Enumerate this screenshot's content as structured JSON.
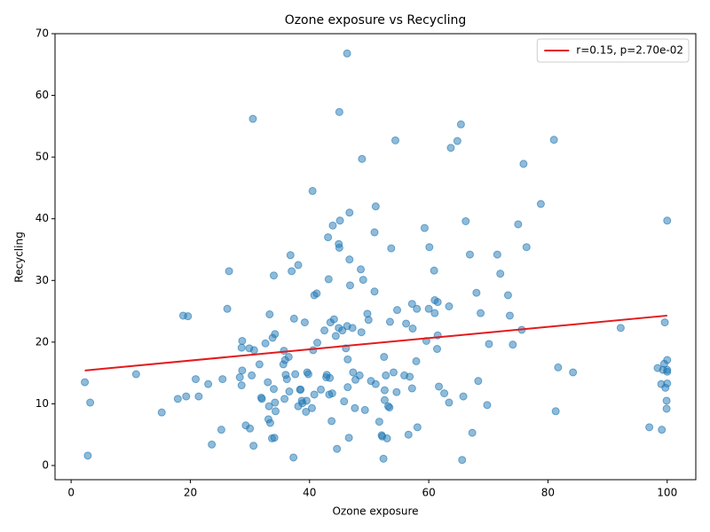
{
  "chart_data": {
    "type": "scatter",
    "title": "Ozone exposure vs Recycling",
    "x_label": "Ozone exposure",
    "y_label": "Recycling",
    "xlim": [
      -2.7,
      104.8
    ],
    "ylim": [
      -2.3,
      70
    ],
    "xticks": [
      0,
      20,
      40,
      60,
      80,
      100
    ],
    "yticks": [
      0,
      10,
      20,
      30,
      40,
      50,
      60,
      70
    ],
    "legend": "upper right",
    "points": {
      "color": "#1f77b4",
      "x": [
        2.3,
        2.8,
        3.2,
        10.9,
        15.2,
        17.9,
        18.8,
        19.3,
        19.6,
        20.9,
        21.4,
        23,
        23.6,
        25.2,
        25.4,
        26.2,
        26.5,
        28.3,
        28.6,
        28.6,
        28.7,
        28.7,
        29.3,
        29.9,
        30,
        30.3,
        30.5,
        30.6,
        30.7,
        31.6,
        31.9,
        32,
        32.6,
        33,
        33.1,
        33.2,
        33.3,
        33.4,
        33.7,
        33.8,
        34,
        34,
        34.1,
        34.2,
        34.2,
        34.3,
        35.6,
        35.7,
        35.8,
        35.9,
        36,
        36.2,
        36.5,
        36.6,
        36.8,
        37,
        37.3,
        37.4,
        37.6,
        38.1,
        38.1,
        38.4,
        38.5,
        38.7,
        38.8,
        39.2,
        39.4,
        39.5,
        39.6,
        39.8,
        40.4,
        40.5,
        40.6,
        40.8,
        40.8,
        41.2,
        41.3,
        41.9,
        42.5,
        42.8,
        42.9,
        43.1,
        43.2,
        43.3,
        43.4,
        43.5,
        43.7,
        43.8,
        43.9,
        44.1,
        44.4,
        44.6,
        44.9,
        44.9,
        45,
        45,
        45.1,
        45.5,
        45.8,
        46.1,
        46.3,
        46.3,
        46.4,
        46.4,
        46.6,
        46.7,
        46.7,
        46.8,
        47.2,
        47.3,
        47.6,
        47.7,
        48.4,
        48.6,
        48.7,
        48.8,
        49,
        49.3,
        49.7,
        49.9,
        50.3,
        50.9,
        50.9,
        51.1,
        51.1,
        51.7,
        52.1,
        52.2,
        52.4,
        52.5,
        52.6,
        52.6,
        52.8,
        53,
        53.2,
        53.4,
        53.5,
        53.7,
        54.1,
        54.4,
        54.6,
        54.7,
        55.9,
        56.2,
        56.6,
        56.8,
        57.2,
        57.2,
        57.3,
        57.9,
        58,
        58.1,
        59.3,
        59.6,
        60,
        60.1,
        60.9,
        61,
        61,
        61.4,
        61.5,
        61.5,
        61.7,
        62.6,
        63.4,
        63.4,
        63.7,
        64.8,
        65.4,
        65.6,
        65.8,
        66.2,
        66.9,
        67.3,
        68,
        68.3,
        68.7,
        69.8,
        70.1,
        71.5,
        72,
        73.3,
        73.6,
        74.1,
        75,
        75.6,
        75.9,
        76.4,
        78.8,
        81,
        81.3,
        81.7,
        84.2,
        92.2,
        97,
        98.4,
        99,
        99.1,
        99.3,
        99.5,
        99.6,
        99.7,
        99.9,
        99.9,
        100,
        100,
        100,
        100,
        100
      ],
      "y": [
        13.5,
        1.6,
        10.2,
        14.8,
        8.6,
        10.8,
        24.3,
        11.2,
        24.2,
        14,
        11.2,
        13.2,
        3.4,
        5.8,
        14,
        25.4,
        31.5,
        14.3,
        19.1,
        13,
        15.4,
        20.2,
        6.5,
        19,
        6,
        14.6,
        56.2,
        3.2,
        18.7,
        16.4,
        11,
        10.8,
        19.8,
        13.5,
        7.5,
        9.6,
        24.5,
        6.9,
        4.4,
        20.7,
        12.4,
        30.8,
        4.5,
        10.2,
        21.3,
        8.8,
        16.4,
        18.6,
        10.8,
        17.1,
        14.7,
        14,
        17.6,
        12,
        34.1,
        31.5,
        1.3,
        23.8,
        14.8,
        9.6,
        32.5,
        12.3,
        12.3,
        10.5,
        10.1,
        23.2,
        8.7,
        10.5,
        15.1,
        14.8,
        9.3,
        44.5,
        18.7,
        11.5,
        27.6,
        27.9,
        19.9,
        12.3,
        21.9,
        14.3,
        14.7,
        37,
        30.2,
        11.5,
        14.2,
        23.2,
        7.2,
        11.7,
        38.9,
        23.7,
        21,
        2.7,
        35.9,
        22.3,
        57.3,
        35.3,
        39.7,
        21.9,
        10.4,
        19,
        22.6,
        66.8,
        17.2,
        12.7,
        4.5,
        33.4,
        41,
        29.2,
        22.3,
        15.1,
        9.3,
        13.9,
        14.6,
        31.8,
        21.6,
        49.7,
        30.1,
        9,
        24.6,
        23.6,
        13.7,
        28.2,
        37.8,
        42,
        13.2,
        7.1,
        4.9,
        4.7,
        1.1,
        17.6,
        12.2,
        10.6,
        14.6,
        4.4,
        9.6,
        9.4,
        23.3,
        35.2,
        15.1,
        52.7,
        11.9,
        25.2,
        14.6,
        23,
        5,
        14.4,
        12.5,
        26.2,
        22.2,
        16.9,
        25.4,
        6.2,
        38.5,
        20.2,
        25.4,
        35.4,
        31.6,
        26.8,
        24.7,
        18.9,
        21.1,
        26.5,
        12.8,
        11.7,
        10.2,
        25.8,
        51.5,
        52.6,
        55.3,
        0.9,
        11.2,
        39.6,
        34.2,
        5.3,
        28,
        13.7,
        24.7,
        9.8,
        19.7,
        34.2,
        31.1,
        27.6,
        24.3,
        19.6,
        39.1,
        22,
        48.9,
        35.4,
        42.4,
        52.8,
        8.8,
        15.9,
        15.1,
        22.3,
        6.2,
        15.8,
        13.2,
        5.8,
        15.5,
        16.5,
        23.2,
        12.6,
        9.2,
        10.5,
        13.3,
        15.2,
        15.5,
        17.1,
        39.7
      ]
    },
    "line": {
      "name": "r=0.15, p=2.70e-02",
      "color": "#e41a1c",
      "x": [
        2.3,
        100
      ],
      "y": [
        15.4,
        24.3
      ]
    }
  }
}
